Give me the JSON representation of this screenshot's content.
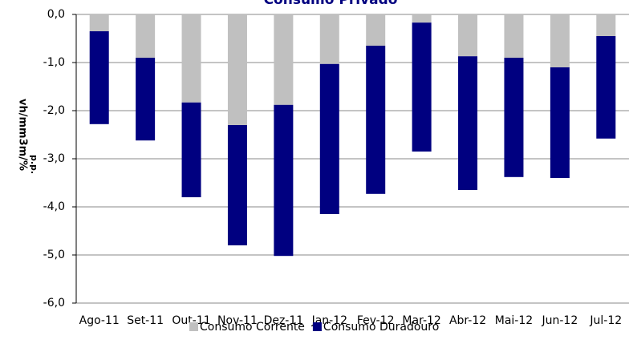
{
  "chart_data": {
    "type": "stacked-bar",
    "title": "Consumo Privado",
    "y_label": "vh/mm3m/%",
    "y_unit": "p.p.",
    "categories": [
      "Ago-11",
      "Set-11",
      "Out-11",
      "Nov-11",
      "Dez-11",
      "Jan-12",
      "Fev-12",
      "Mar-12",
      "Abr-12",
      "Mai-12",
      "Jun-12",
      "Jul-12"
    ],
    "series": [
      {
        "name": "Consumo Corrente",
        "color": "#c0c0c0",
        "values": [
          -0.35,
          -0.9,
          -1.83,
          -2.3,
          -1.88,
          -1.03,
          -0.65,
          -0.17,
          -0.87,
          -0.9,
          -1.1,
          -0.45
        ]
      },
      {
        "name": "Consumo Duradouro",
        "color": "#000080",
        "values": [
          -1.93,
          -1.72,
          -1.97,
          -2.5,
          -3.14,
          -3.12,
          -3.08,
          -2.68,
          -2.78,
          -2.48,
          -2.3,
          -2.13
        ]
      }
    ],
    "ylim": [
      -6,
      0
    ],
    "yticks": [
      {
        "value": 0,
        "label": "0,0"
      },
      {
        "value": -1,
        "label": "-1,0"
      },
      {
        "value": -2,
        "label": "-2,0"
      },
      {
        "value": -3,
        "label": "-3,0"
      },
      {
        "value": -4,
        "label": "-4,0"
      },
      {
        "value": -5,
        "label": "-5,0"
      },
      {
        "value": -6,
        "label": "-6,0"
      }
    ],
    "grid": true
  }
}
